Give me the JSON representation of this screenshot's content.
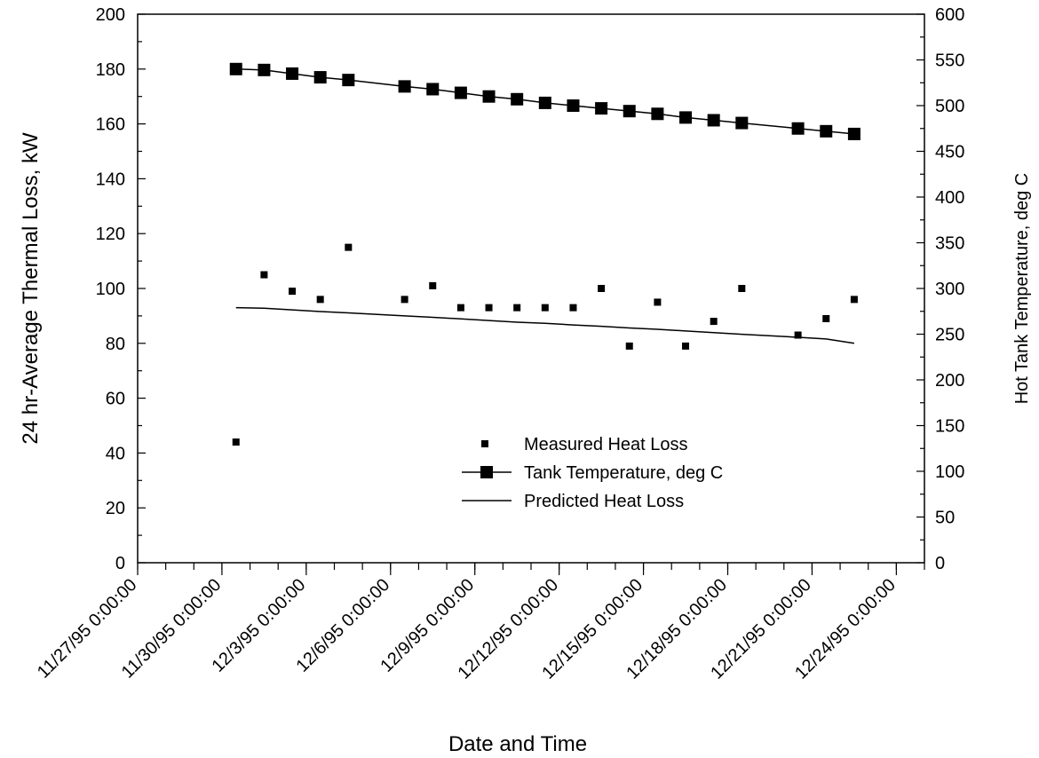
{
  "chart_data": {
    "type": "line",
    "xlabel": "Date and Time",
    "ylabel": "24 hr-Average Thermal Loss, kW",
    "y2label": "Hot Tank Temperature,  deg C",
    "x_ticks": [
      "11/27/95 0:00:00",
      "11/30/95 0:00:00",
      "12/3/95 0:00:00",
      "12/6/95 0:00:00",
      "12/9/95 0:00:00",
      "12/12/95 0:00:00",
      "12/15/95 0:00:00",
      "12/18/95 0:00:00",
      "12/21/95 0:00:00",
      "12/24/95 0:00:00"
    ],
    "xlim": [
      "11/27/95",
      "12/25/95"
    ],
    "ylim": [
      0,
      200
    ],
    "y_ticks": [
      0,
      20,
      40,
      60,
      80,
      100,
      120,
      140,
      160,
      180,
      200
    ],
    "y2lim": [
      0,
      600
    ],
    "y2_ticks": [
      0,
      50,
      100,
      150,
      200,
      250,
      300,
      350,
      400,
      450,
      500,
      550,
      600
    ],
    "grid": false,
    "legend_position": "lower-center",
    "series": [
      {
        "name": "Measured Heat Loss",
        "style": "points",
        "axis": "left",
        "x": [
          "11/30/95 12:00",
          "12/1/95 12:00",
          "12/2/95 12:00",
          "12/3/95 12:00",
          "12/4/95 12:00",
          "12/6/95 12:00",
          "12/7/95 12:00",
          "12/8/95 12:00",
          "12/9/95 12:00",
          "12/10/95 12:00",
          "12/11/95 12:00",
          "12/12/95 12:00",
          "12/13/95 12:00",
          "12/14/95 12:00",
          "12/15/95 12:00",
          "12/16/95 12:00",
          "12/17/95 12:00",
          "12/18/95 12:00",
          "12/20/95 12:00",
          "12/21/95 12:00",
          "12/22/95 12:00"
        ],
        "values": [
          44,
          105,
          99,
          96,
          115,
          96,
          101,
          93,
          93,
          93,
          93,
          93,
          100,
          79,
          95,
          79,
          88,
          100,
          83,
          89,
          96
        ]
      },
      {
        "name": "Tank Temperature,  deg C",
        "style": "line-square-markers",
        "axis": "right",
        "x": [
          "11/30/95 12:00",
          "12/1/95 12:00",
          "12/2/95 12:00",
          "12/3/95 12:00",
          "12/4/95 12:00",
          "12/6/95 12:00",
          "12/7/95 12:00",
          "12/8/95 12:00",
          "12/9/95 12:00",
          "12/10/95 12:00",
          "12/11/95 12:00",
          "12/12/95 12:00",
          "12/13/95 12:00",
          "12/14/95 12:00",
          "12/15/95 12:00",
          "12/16/95 12:00",
          "12/17/95 12:00",
          "12/18/95 12:00",
          "12/20/95 12:00",
          "12/21/95 12:00",
          "12/22/95 12:00"
        ],
        "values": [
          540,
          539,
          535,
          531,
          528,
          521,
          518,
          514,
          510,
          507,
          503,
          500,
          497,
          494,
          491,
          487,
          484,
          481,
          475,
          472,
          469
        ]
      },
      {
        "name": "Predicted Heat Loss",
        "style": "line",
        "axis": "left",
        "x": [
          "11/30/95 12:00",
          "12/1/95 12:00",
          "12/2/95 12:00",
          "12/3/95 12:00",
          "12/4/95 12:00",
          "12/6/95 12:00",
          "12/7/95 12:00",
          "12/8/95 12:00",
          "12/9/95 12:00",
          "12/10/95 12:00",
          "12/11/95 12:00",
          "12/12/95 12:00",
          "12/13/95 12:00",
          "12/14/95 12:00",
          "12/15/95 12:00",
          "12/16/95 12:00",
          "12/17/95 12:00",
          "12/18/95 12:00",
          "12/20/95 12:00",
          "12/21/95 12:00",
          "12/22/95 12:00"
        ],
        "values": [
          93,
          92.8,
          92.2,
          91.6,
          91.1,
          90,
          89.5,
          88.9,
          88.3,
          87.7,
          87.3,
          86.7,
          86.2,
          85.6,
          85.1,
          84.5,
          83.9,
          83.3,
          82.2,
          81.6,
          80
        ]
      }
    ]
  }
}
